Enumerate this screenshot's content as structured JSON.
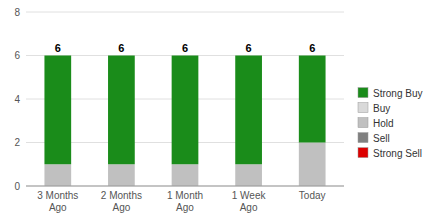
{
  "chart_data": {
    "type": "bar",
    "stacked": true,
    "categories": [
      "3 Months\nAgo",
      "2 Months\nAgo",
      "1 Month\nAgo",
      "1 Week\nAgo",
      "Today"
    ],
    "series": [
      {
        "name": "Strong Buy",
        "color": "#1a8c1a",
        "values": [
          5,
          5,
          5,
          5,
          4
        ]
      },
      {
        "name": "Buy",
        "color": "#d9d9d9",
        "values": [
          0,
          0,
          0,
          0,
          0
        ]
      },
      {
        "name": "Hold",
        "color": "#c0c0c0",
        "values": [
          1,
          1,
          1,
          1,
          2
        ]
      },
      {
        "name": "Sell",
        "color": "#808080",
        "values": [
          0,
          0,
          0,
          0,
          0
        ]
      },
      {
        "name": "Strong Sell",
        "color": "#dd0000",
        "values": [
          0,
          0,
          0,
          0,
          0
        ]
      }
    ],
    "totals": [
      6,
      6,
      6,
      6,
      6
    ],
    "ylim": [
      0,
      8
    ],
    "yticks": [
      0,
      2,
      4,
      6,
      8
    ],
    "grid": true,
    "legend": "right"
  }
}
